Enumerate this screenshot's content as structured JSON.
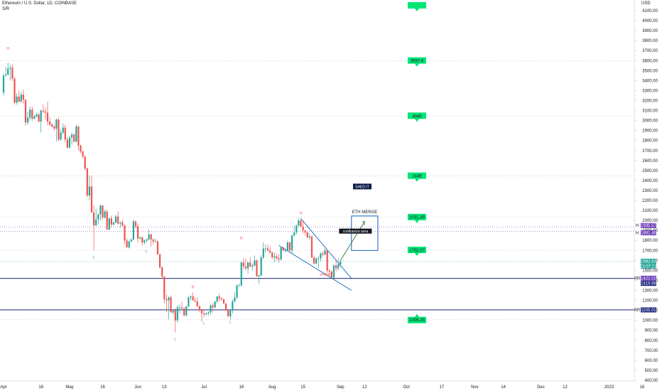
{
  "header": {
    "symbol": "Ethereum / U.S. Dollar, 1D, COINBASE",
    "indicator": "S/R",
    "currency": "USD"
  },
  "chart_data": {
    "type": "candlestick",
    "symbol": "Ethereum / U.S. Dollar",
    "interval": "1D",
    "exchange": "COINBASE",
    "currency": "USD",
    "ylim": [
      400,
      4150
    ],
    "y_ticks": [
      400,
      500,
      600,
      700,
      800,
      900,
      1000,
      1100,
      1200,
      1300,
      1400,
      1500,
      1600,
      1700,
      1800,
      1900,
      2000,
      2100,
      2200,
      2300,
      2400,
      2500,
      2600,
      2700,
      2800,
      2900,
      3000,
      3100,
      3200,
      3300,
      3400,
      3500,
      3600,
      3700,
      3800,
      3900,
      4000,
      4100
    ],
    "x_ticks": [
      "Apr",
      "18",
      "May",
      "16",
      "Jun",
      "13",
      "Jul",
      "18",
      "Aug",
      "15",
      "Sep",
      "12",
      "Oct",
      "17",
      "Nov",
      "14",
      "Dec",
      "12",
      "2023",
      "16"
    ],
    "x_tick_dates": [
      "2022-04-01",
      "2022-04-18",
      "2022-05-01",
      "2022-05-16",
      "2022-06-01",
      "2022-06-13",
      "2022-07-01",
      "2022-07-18",
      "2022-08-01",
      "2022-08-15",
      "2022-09-01",
      "2022-09-12",
      "2022-10-01",
      "2022-10-17",
      "2022-11-01",
      "2022-11-14",
      "2022-12-01",
      "2022-12-12",
      "2023-01-01",
      "2023-01-16"
    ],
    "candles": [
      [
        "2022-04-01",
        3280,
        3470,
        3250,
        3450
      ],
      [
        "2022-04-02",
        3450,
        3540,
        3440,
        3460
      ],
      [
        "2022-04-03",
        3460,
        3580,
        3450,
        3520
      ],
      [
        "2022-04-04",
        3520,
        3560,
        3400,
        3530
      ],
      [
        "2022-04-05",
        3530,
        3560,
        3400,
        3420
      ],
      [
        "2022-04-06",
        3420,
        3440,
        3160,
        3180
      ],
      [
        "2022-04-07",
        3180,
        3270,
        3160,
        3240
      ],
      [
        "2022-04-08",
        3240,
        3300,
        3180,
        3190
      ],
      [
        "2022-04-09",
        3190,
        3290,
        3180,
        3260
      ],
      [
        "2022-04-10",
        3260,
        3310,
        3170,
        3210
      ],
      [
        "2022-04-11",
        3210,
        3210,
        2950,
        2980
      ],
      [
        "2022-04-12",
        2980,
        3090,
        2960,
        3030
      ],
      [
        "2022-04-13",
        3030,
        3140,
        3000,
        3110
      ],
      [
        "2022-04-14",
        3110,
        3140,
        3000,
        3020
      ],
      [
        "2022-04-15",
        3020,
        3060,
        3010,
        3040
      ],
      [
        "2022-04-16",
        3040,
        3080,
        3030,
        3060
      ],
      [
        "2022-04-17",
        3060,
        3080,
        2980,
        2990
      ],
      [
        "2022-04-18",
        2990,
        3110,
        2880,
        3100
      ],
      [
        "2022-04-19",
        3100,
        3160,
        3070,
        3090
      ],
      [
        "2022-04-20",
        3090,
        3130,
        3010,
        3080
      ],
      [
        "2022-04-21",
        3080,
        3190,
        2950,
        2990
      ],
      [
        "2022-04-22",
        2990,
        3030,
        2940,
        2960
      ],
      [
        "2022-04-23",
        2960,
        2980,
        2930,
        2940
      ],
      [
        "2022-04-24",
        2940,
        2960,
        2900,
        2920
      ],
      [
        "2022-04-25",
        2920,
        3020,
        2790,
        3010
      ],
      [
        "2022-04-26",
        3010,
        3030,
        2790,
        2810
      ],
      [
        "2022-04-27",
        2810,
        2910,
        2800,
        2880
      ],
      [
        "2022-04-28",
        2880,
        2970,
        2860,
        2930
      ],
      [
        "2022-04-29",
        2930,
        2960,
        2780,
        2810
      ],
      [
        "2022-04-30",
        2810,
        2830,
        2720,
        2730
      ],
      [
        "2022-05-01",
        2730,
        2850,
        2720,
        2830
      ],
      [
        "2022-05-02",
        2830,
        2880,
        2760,
        2860
      ],
      [
        "2022-05-03",
        2860,
        2870,
        2780,
        2790
      ],
      [
        "2022-05-04",
        2790,
        2960,
        2780,
        2940
      ],
      [
        "2022-05-05",
        2940,
        2950,
        2700,
        2750
      ],
      [
        "2022-05-06",
        2750,
        2760,
        2670,
        2690
      ],
      [
        "2022-05-07",
        2690,
        2700,
        2620,
        2640
      ],
      [
        "2022-05-08",
        2640,
        2650,
        2500,
        2520
      ],
      [
        "2022-05-09",
        2520,
        2530,
        2230,
        2250
      ],
      [
        "2022-05-10",
        2250,
        2450,
        2200,
        2340
      ],
      [
        "2022-05-11",
        2340,
        2450,
        2080,
        2080
      ],
      [
        "2022-05-12",
        2080,
        2150,
        1700,
        1950
      ],
      [
        "2022-05-13",
        1950,
        2120,
        1950,
        2010
      ],
      [
        "2022-05-14",
        2010,
        2070,
        1960,
        2060
      ],
      [
        "2022-05-15",
        2060,
        2160,
        2000,
        2150
      ],
      [
        "2022-05-16",
        2150,
        2150,
        2010,
        2030
      ],
      [
        "2022-05-17",
        2030,
        2110,
        2020,
        2090
      ],
      [
        "2022-05-18",
        2090,
        2110,
        1910,
        1910
      ],
      [
        "2022-05-19",
        1910,
        2030,
        1900,
        2020
      ],
      [
        "2022-05-20",
        2020,
        2050,
        1930,
        1960
      ],
      [
        "2022-05-21",
        1960,
        1990,
        1950,
        1980
      ],
      [
        "2022-05-22",
        1980,
        2060,
        1970,
        2040
      ],
      [
        "2022-05-23",
        2040,
        2090,
        1960,
        1970
      ],
      [
        "2022-05-24",
        1970,
        1990,
        1930,
        1980
      ],
      [
        "2022-05-25",
        1980,
        2010,
        1940,
        1950
      ],
      [
        "2022-05-26",
        1950,
        1960,
        1760,
        1800
      ],
      [
        "2022-05-27",
        1800,
        1820,
        1730,
        1730
      ],
      [
        "2022-05-28",
        1730,
        1800,
        1720,
        1790
      ],
      [
        "2022-05-29",
        1790,
        1820,
        1780,
        1810
      ],
      [
        "2022-05-30",
        1810,
        2010,
        1800,
        1990
      ],
      [
        "2022-05-31",
        1990,
        2000,
        1920,
        1940
      ],
      [
        "2022-06-01",
        1940,
        1970,
        1780,
        1820
      ],
      [
        "2022-06-02",
        1820,
        1840,
        1810,
        1830
      ],
      [
        "2022-06-03",
        1830,
        1840,
        1750,
        1780
      ],
      [
        "2022-06-04",
        1780,
        1810,
        1760,
        1800
      ],
      [
        "2022-06-05",
        1800,
        1820,
        1780,
        1810
      ],
      [
        "2022-06-06",
        1810,
        1910,
        1800,
        1860
      ],
      [
        "2022-06-07",
        1860,
        1870,
        1740,
        1810
      ],
      [
        "2022-06-08",
        1810,
        1820,
        1760,
        1790
      ],
      [
        "2022-06-09",
        1790,
        1820,
        1780,
        1790
      ],
      [
        "2022-06-10",
        1790,
        1800,
        1660,
        1660
      ],
      [
        "2022-06-11",
        1660,
        1670,
        1520,
        1530
      ],
      [
        "2022-06-12",
        1530,
        1540,
        1420,
        1440
      ],
      [
        "2022-06-13",
        1440,
        1440,
        1170,
        1210
      ],
      [
        "2022-06-14",
        1210,
        1260,
        1080,
        1200
      ],
      [
        "2022-06-15",
        1200,
        1240,
        1010,
        1230
      ],
      [
        "2022-06-16",
        1230,
        1250,
        1080,
        1080
      ],
      [
        "2022-06-17",
        1080,
        1110,
        1060,
        1100
      ],
      [
        "2022-06-18",
        1100,
        1120,
        880,
        1000
      ],
      [
        "2022-06-19",
        1000,
        1150,
        980,
        1130
      ],
      [
        "2022-06-20",
        1130,
        1160,
        1070,
        1130
      ],
      [
        "2022-06-21",
        1130,
        1190,
        1110,
        1120
      ],
      [
        "2022-06-22",
        1120,
        1130,
        1040,
        1050
      ],
      [
        "2022-06-23",
        1050,
        1140,
        1040,
        1140
      ],
      [
        "2022-06-24",
        1140,
        1240,
        1130,
        1230
      ],
      [
        "2022-06-25",
        1230,
        1250,
        1200,
        1240
      ],
      [
        "2022-06-26",
        1240,
        1280,
        1200,
        1200
      ],
      [
        "2022-06-27",
        1200,
        1230,
        1180,
        1190
      ],
      [
        "2022-06-28",
        1190,
        1230,
        1140,
        1140
      ],
      [
        "2022-06-29",
        1140,
        1150,
        1080,
        1100
      ],
      [
        "2022-06-30",
        1100,
        1110,
        990,
        1070
      ],
      [
        "2022-07-01",
        1070,
        1100,
        1030,
        1060
      ],
      [
        "2022-07-02",
        1060,
        1080,
        1050,
        1070
      ],
      [
        "2022-07-03",
        1070,
        1090,
        1050,
        1080
      ],
      [
        "2022-07-04",
        1080,
        1160,
        1060,
        1150
      ],
      [
        "2022-07-05",
        1150,
        1170,
        1080,
        1130
      ],
      [
        "2022-07-06",
        1130,
        1190,
        1120,
        1190
      ],
      [
        "2022-07-07",
        1190,
        1240,
        1170,
        1240
      ],
      [
        "2022-07-08",
        1240,
        1270,
        1190,
        1220
      ],
      [
        "2022-07-09",
        1220,
        1230,
        1200,
        1210
      ],
      [
        "2022-07-10",
        1210,
        1220,
        1160,
        1170
      ],
      [
        "2022-07-11",
        1170,
        1170,
        1090,
        1100
      ],
      [
        "2022-07-12",
        1100,
        1110,
        1040,
        1040
      ],
      [
        "2022-07-13",
        1040,
        1110,
        1010,
        1110
      ],
      [
        "2022-07-14",
        1110,
        1210,
        1070,
        1190
      ],
      [
        "2022-07-15",
        1190,
        1280,
        1180,
        1230
      ],
      [
        "2022-07-16",
        1230,
        1360,
        1210,
        1350
      ],
      [
        "2022-07-17",
        1350,
        1370,
        1340,
        1350
      ],
      [
        "2022-07-18",
        1350,
        1590,
        1340,
        1580
      ],
      [
        "2022-07-19",
        1580,
        1620,
        1510,
        1540
      ],
      [
        "2022-07-20",
        1540,
        1620,
        1500,
        1520
      ],
      [
        "2022-07-21",
        1520,
        1590,
        1470,
        1580
      ],
      [
        "2022-07-22",
        1580,
        1630,
        1530,
        1540
      ],
      [
        "2022-07-23",
        1540,
        1570,
        1500,
        1550
      ],
      [
        "2022-07-24",
        1550,
        1650,
        1540,
        1600
      ],
      [
        "2022-07-25",
        1600,
        1610,
        1440,
        1440
      ],
      [
        "2022-07-26",
        1440,
        1460,
        1370,
        1450
      ],
      [
        "2022-07-27",
        1450,
        1650,
        1440,
        1630
      ],
      [
        "2022-07-28",
        1630,
        1780,
        1610,
        1720
      ],
      [
        "2022-07-29",
        1720,
        1760,
        1680,
        1720
      ],
      [
        "2022-07-30",
        1720,
        1760,
        1690,
        1700
      ],
      [
        "2022-07-31",
        1700,
        1740,
        1670,
        1680
      ],
      [
        "2022-08-01",
        1680,
        1690,
        1610,
        1630
      ],
      [
        "2022-08-02",
        1630,
        1680,
        1580,
        1640
      ],
      [
        "2022-08-03",
        1640,
        1670,
        1600,
        1620
      ],
      [
        "2022-08-04",
        1620,
        1660,
        1580,
        1610
      ],
      [
        "2022-08-05",
        1610,
        1740,
        1600,
        1730
      ],
      [
        "2022-08-06",
        1730,
        1740,
        1690,
        1700
      ],
      [
        "2022-08-07",
        1700,
        1720,
        1680,
        1700
      ],
      [
        "2022-08-08",
        1700,
        1800,
        1690,
        1780
      ],
      [
        "2022-08-09",
        1780,
        1790,
        1680,
        1700
      ],
      [
        "2022-08-10",
        1700,
        1860,
        1670,
        1850
      ],
      [
        "2022-08-11",
        1850,
        1950,
        1840,
        1880
      ],
      [
        "2022-08-12",
        1880,
        1960,
        1860,
        1950
      ],
      [
        "2022-08-13",
        1950,
        2020,
        1940,
        2000
      ],
      [
        "2022-08-14",
        2000,
        2010,
        1930,
        1940
      ],
      [
        "2022-08-15",
        1940,
        2000,
        1870,
        1900
      ],
      [
        "2022-08-16",
        1900,
        1910,
        1850,
        1880
      ],
      [
        "2022-08-17",
        1880,
        1890,
        1820,
        1830
      ],
      [
        "2022-08-18",
        1830,
        1870,
        1810,
        1840
      ],
      [
        "2022-08-19",
        1840,
        1850,
        1620,
        1630
      ],
      [
        "2022-08-20",
        1630,
        1650,
        1560,
        1570
      ],
      [
        "2022-08-21",
        1570,
        1630,
        1560,
        1620
      ],
      [
        "2022-08-22",
        1620,
        1640,
        1520,
        1620
      ],
      [
        "2022-08-23",
        1620,
        1680,
        1590,
        1670
      ],
      [
        "2022-08-24",
        1670,
        1690,
        1640,
        1660
      ],
      [
        "2022-08-25",
        1660,
        1720,
        1650,
        1700
      ],
      [
        "2022-08-26",
        1700,
        1710,
        1480,
        1500
      ],
      [
        "2022-08-27",
        1500,
        1510,
        1440,
        1490
      ],
      [
        "2022-08-28",
        1490,
        1500,
        1420,
        1430
      ],
      [
        "2022-08-29",
        1430,
        1560,
        1420,
        1550
      ],
      [
        "2022-08-30",
        1550,
        1610,
        1490,
        1520
      ],
      [
        "2022-08-31",
        1520,
        1620,
        1500,
        1560
      ],
      [
        "2022-09-01",
        1560,
        1600,
        1530,
        1590
      ]
    ],
    "resistance_supports": [
      {
        "value": 1419.98,
        "label": "1419.98"
      },
      {
        "value": 1105.01,
        "label": "1105.01"
      }
    ],
    "dotted_levels": [
      1935.57,
      1891.46
    ],
    "levels": [
      {
        "value": 4150,
        "label": "",
        "direction": "up"
      },
      {
        "value": 3597.6,
        "label": "3597.6",
        "direction": "up"
      },
      {
        "value": 3045,
        "label": "3045",
        "direction": "up"
      },
      {
        "value": 2445,
        "label": "2445",
        "direction": "up"
      },
      {
        "value": 2031.39,
        "label": "2031.39",
        "direction": "up"
      },
      {
        "value": 1702.07,
        "label": "1702.07",
        "direction": "up"
      },
      {
        "value": 1006.25,
        "label": "1006.25",
        "direction": "down"
      }
    ],
    "price_badges": [
      {
        "value": 1935.57,
        "label": "1935.57",
        "color": "#673ab7",
        "prefix": "H"
      },
      {
        "value": 1891.46,
        "label": "1891.46",
        "color": "#673ab7",
        "prefix": "H"
      },
      {
        "value": 1592.53,
        "label": "1592.53",
        "color": "#26a69a",
        "prefix": ""
      },
      {
        "value": 1422.02,
        "label": "1422.02",
        "color": "#673ab7",
        "prefix": "RR"
      },
      {
        "value": 1419.98,
        "label": "1419.98",
        "color": "#1a237e",
        "prefix": ""
      },
      {
        "value": 1105.01,
        "label": "1105.01",
        "color": "#1a237e",
        "prefix": "RR"
      }
    ],
    "countdown": "22:07:22",
    "annotations": {
      "box_label": "ETH MERGE",
      "callout": "confluence area",
      "note": "SHED IT",
      "wedge_label": "wedge"
    },
    "pattern_marks": [
      {
        "date": "2022-04-03",
        "kind": "H",
        "value": 3710
      },
      {
        "date": "2022-05-12",
        "kind": "L",
        "value": 1620
      },
      {
        "date": "2022-06-05",
        "kind": "L",
        "value": 1680
      },
      {
        "date": "2022-06-18",
        "kind": "L",
        "value": 800
      },
      {
        "date": "2022-06-26",
        "kind": "H",
        "value": 1320
      },
      {
        "date": "2022-07-01",
        "kind": "L",
        "value": 960
      },
      {
        "date": "2022-07-13",
        "kind": "L",
        "value": 970
      },
      {
        "date": "2022-07-18",
        "kind": "H",
        "value": 1810
      },
      {
        "date": "2022-08-14",
        "kind": "H",
        "value": 2060
      }
    ]
  },
  "colors": {
    "up": "#26a69a",
    "down": "#ef5350",
    "support": "#1a237e",
    "wedge": "#1565c0",
    "level_badge": "#00e676",
    "box": "#1565c0",
    "arrow": "#2e7d32"
  }
}
